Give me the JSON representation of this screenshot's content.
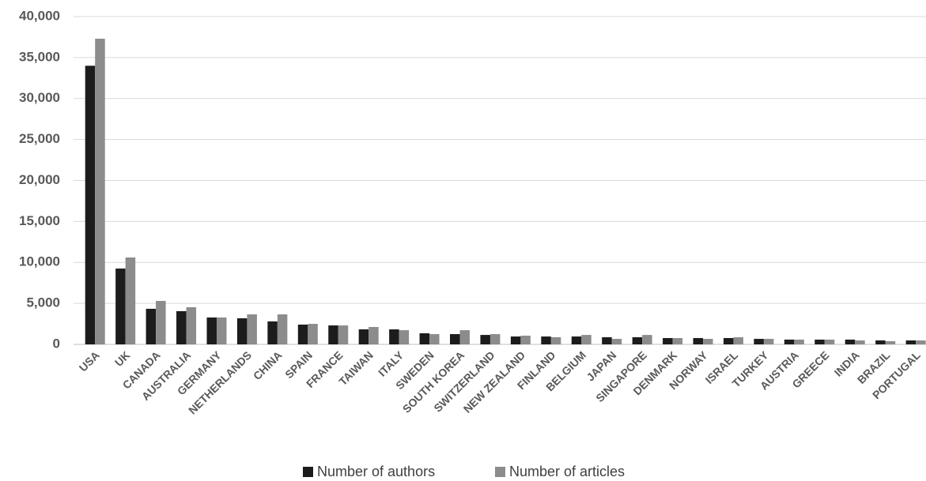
{
  "chart_data": {
    "type": "bar",
    "categories": [
      "USA",
      "UK",
      "CANADA",
      "AUSTRALIA",
      "GERMANY",
      "NETHERLANDS",
      "CHINA",
      "SPAIN",
      "FRANCE",
      "TAIWAN",
      "ITALY",
      "SWEDEN",
      "SOUTH KOREA",
      "SWITZERLAND",
      "NEW ZEALAND",
      "FINLAND",
      "BELGIUM",
      "JAPAN",
      "SINGAPORE",
      "DENMARK",
      "NORWAY",
      "ISRAEL",
      "TURKEY",
      "AUSTRIA",
      "GREECE",
      "INDIA",
      "BRAZIL",
      "PORTUGAL"
    ],
    "series": [
      {
        "name": "Number of authors",
        "color": "#1c1c1c",
        "values": [
          34000,
          9250,
          4340,
          4050,
          3280,
          3180,
          2800,
          2410,
          2310,
          1830,
          1830,
          1350,
          1250,
          1150,
          960,
          960,
          960,
          870,
          870,
          770,
          770,
          770,
          670,
          580,
          580,
          580,
          480,
          480
        ]
      },
      {
        "name": "Number of articles",
        "color": "#8c8c8c",
        "values": [
          37300,
          10600,
          5300,
          4530,
          3280,
          3660,
          3660,
          2500,
          2310,
          2120,
          1730,
          1250,
          1730,
          1250,
          1060,
          870,
          1150,
          670,
          1150,
          770,
          670,
          870,
          670,
          580,
          580,
          480,
          390,
          480
        ]
      }
    ],
    "ylim": [
      0,
      40000
    ],
    "yticks": [
      0,
      {
        "value": 5000,
        "label": "5,000"
      },
      {
        "value": 10000,
        "label": "10,000"
      },
      {
        "value": 15000,
        "label": "15,000"
      },
      {
        "value": 20000,
        "label": "20,000"
      },
      {
        "value": 25000,
        "label": "25,000"
      },
      {
        "value": 30000,
        "label": "30,000"
      },
      {
        "value": 35000,
        "label": "35,000"
      },
      {
        "value": 40000,
        "label": "40,000"
      }
    ],
    "grid": true
  }
}
